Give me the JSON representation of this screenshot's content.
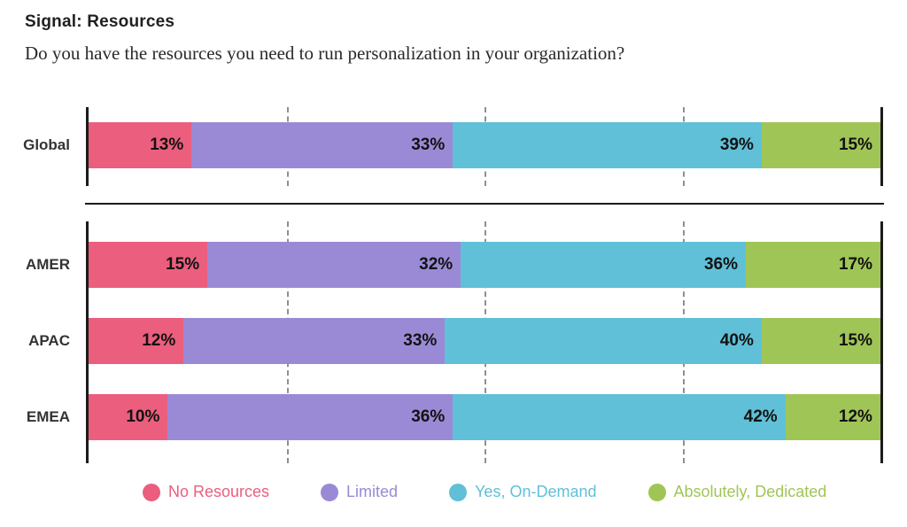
{
  "header": {
    "title": "Signal: Resources",
    "question": "Do you have the resources you need to run personalization in your organization?"
  },
  "chart_data": {
    "type": "bar",
    "orientation": "horizontal",
    "stacked": true,
    "value_unit": "%",
    "x_range": [
      0,
      100
    ],
    "gridlines_pct": [
      25,
      50,
      75
    ],
    "grid_style": "dashed",
    "legend_position": "bottom",
    "series": [
      {
        "name": "No Resources",
        "color": "#EB5E7D"
      },
      {
        "name": "Limited",
        "color": "#9A8AD6"
      },
      {
        "name": "Yes, On-Demand",
        "color": "#5FC0D7"
      },
      {
        "name": "Absolutely, Dedicated",
        "color": "#A0C557"
      }
    ],
    "row_groups": [
      {
        "name": "global",
        "rows": [
          {
            "category": "Global",
            "values": [
              13,
              33,
              39,
              15
            ]
          }
        ]
      },
      {
        "name": "regions",
        "rows": [
          {
            "category": "AMER",
            "values": [
              15,
              32,
              36,
              17
            ]
          },
          {
            "category": "APAC",
            "values": [
              12,
              33,
              40,
              15
            ]
          },
          {
            "category": "EMEA",
            "values": [
              10,
              36,
              42,
              12
            ]
          }
        ]
      }
    ]
  },
  "legend": {
    "items": [
      {
        "label": "No Resources",
        "color": "#EB5E7D"
      },
      {
        "label": "Limited",
        "color": "#9A8AD6"
      },
      {
        "label": "Yes, On-Demand",
        "color": "#5FC0D7"
      },
      {
        "label": "Absolutely, Dedicated",
        "color": "#A0C557"
      }
    ]
  }
}
